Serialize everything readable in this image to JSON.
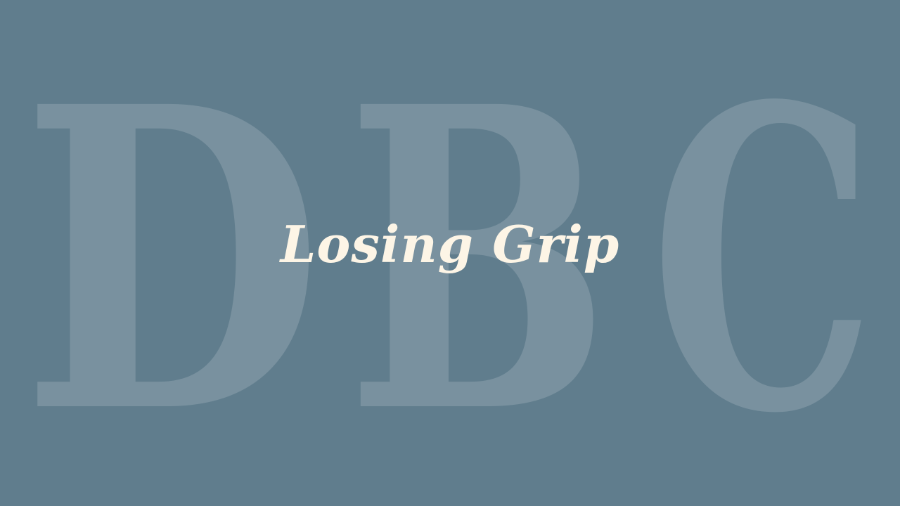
{
  "background": {
    "color": "#607d8d",
    "watermark_letters": [
      "D",
      "B",
      "C"
    ]
  },
  "title": {
    "text": "Losing Grip",
    "color": "#fdf5e6"
  }
}
